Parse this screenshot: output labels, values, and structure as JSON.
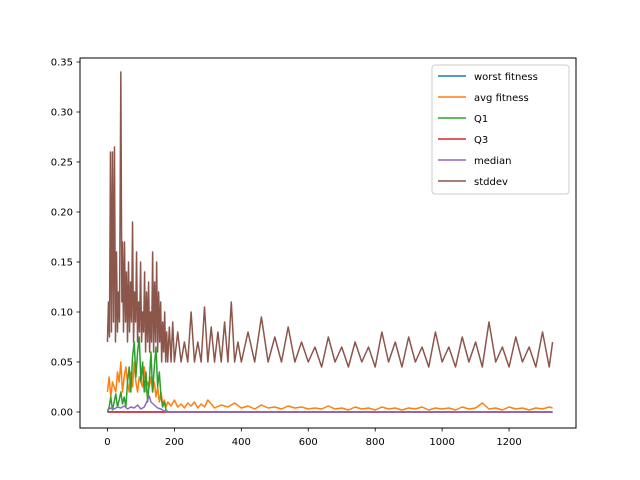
{
  "chart_data": {
    "type": "line",
    "title": "",
    "xlabel": "",
    "ylabel": "",
    "xlim": [
      -82,
      1400
    ],
    "ylim": [
      -0.016,
      0.354
    ],
    "x_ticks": [
      {
        "value": 0,
        "label": "0"
      },
      {
        "value": 200,
        "label": "200"
      },
      {
        "value": 400,
        "label": "400"
      },
      {
        "value": 600,
        "label": "600"
      },
      {
        "value": 800,
        "label": "800"
      },
      {
        "value": 1000,
        "label": "1000"
      },
      {
        "value": 1200,
        "label": "1200"
      }
    ],
    "y_ticks": [
      {
        "value": 0.0,
        "label": "0.00"
      },
      {
        "value": 0.05,
        "label": "0.05"
      },
      {
        "value": 0.1,
        "label": "0.10"
      },
      {
        "value": 0.15,
        "label": "0.15"
      },
      {
        "value": 0.2,
        "label": "0.20"
      },
      {
        "value": 0.25,
        "label": "0.25"
      },
      {
        "value": 0.3,
        "label": "0.30"
      },
      {
        "value": 0.35,
        "label": "0.35"
      }
    ],
    "grid": false,
    "legend": "top-right",
    "series": [
      {
        "name": "worst fitness",
        "color": "#1f77b4",
        "x": [
          0,
          1330
        ],
        "y": [
          0.0,
          0.0
        ]
      },
      {
        "name": "avg fitness",
        "color": "#ff7f0e",
        "x": [
          0,
          5,
          10,
          15,
          20,
          25,
          30,
          35,
          40,
          45,
          50,
          55,
          60,
          65,
          70,
          75,
          80,
          85,
          90,
          95,
          100,
          105,
          110,
          115,
          120,
          125,
          130,
          135,
          140,
          145,
          150,
          155,
          160,
          165,
          170,
          175,
          180,
          190,
          200,
          210,
          220,
          230,
          240,
          250,
          260,
          270,
          280,
          290,
          300,
          320,
          340,
          360,
          380,
          400,
          420,
          440,
          460,
          480,
          500,
          520,
          540,
          560,
          580,
          600,
          620,
          640,
          660,
          680,
          700,
          720,
          740,
          760,
          780,
          800,
          820,
          840,
          860,
          880,
          900,
          920,
          940,
          960,
          980,
          1000,
          1020,
          1040,
          1060,
          1080,
          1100,
          1120,
          1140,
          1160,
          1180,
          1200,
          1220,
          1240,
          1260,
          1280,
          1300,
          1320,
          1330
        ],
        "y": [
          0.02,
          0.035,
          0.015,
          0.03,
          0.025,
          0.02,
          0.04,
          0.03,
          0.05,
          0.02,
          0.035,
          0.045,
          0.03,
          0.02,
          0.04,
          0.025,
          0.05,
          0.03,
          0.02,
          0.035,
          0.03,
          0.025,
          0.045,
          0.02,
          0.03,
          0.025,
          0.035,
          0.02,
          0.03,
          0.015,
          0.025,
          0.01,
          0.02,
          0.008,
          0.012,
          0.005,
          0.01,
          0.006,
          0.012,
          0.005,
          0.008,
          0.004,
          0.009,
          0.006,
          0.01,
          0.004,
          0.008,
          0.005,
          0.012,
          0.004,
          0.007,
          0.005,
          0.009,
          0.004,
          0.006,
          0.003,
          0.007,
          0.004,
          0.005,
          0.003,
          0.006,
          0.004,
          0.005,
          0.003,
          0.004,
          0.003,
          0.006,
          0.003,
          0.004,
          0.002,
          0.005,
          0.003,
          0.004,
          0.002,
          0.005,
          0.003,
          0.004,
          0.002,
          0.004,
          0.003,
          0.005,
          0.002,
          0.004,
          0.003,
          0.004,
          0.002,
          0.005,
          0.003,
          0.004,
          0.009,
          0.003,
          0.004,
          0.002,
          0.005,
          0.003,
          0.004,
          0.002,
          0.004,
          0.003,
          0.005,
          0.004
        ]
      },
      {
        "name": "Q1",
        "color": "#2ca02c",
        "x": [
          0,
          5,
          10,
          15,
          20,
          25,
          30,
          35,
          40,
          45,
          50,
          55,
          60,
          65,
          70,
          75,
          80,
          85,
          90,
          95,
          100,
          105,
          110,
          115,
          120,
          125,
          130,
          135,
          140,
          145,
          150,
          155,
          160,
          165,
          170,
          175,
          180,
          200,
          1330
        ],
        "y": [
          0.0,
          0.005,
          0.015,
          0.002,
          0.01,
          0.018,
          0.005,
          0.012,
          0.02,
          0.008,
          0.015,
          0.005,
          0.03,
          0.045,
          0.02,
          0.055,
          0.07,
          0.035,
          0.06,
          0.075,
          0.03,
          0.05,
          0.02,
          0.04,
          0.01,
          0.03,
          0.06,
          0.02,
          0.045,
          0.065,
          0.025,
          0.04,
          0.015,
          0.005,
          0.01,
          0.002,
          0.0,
          0.0,
          0.0
        ]
      },
      {
        "name": "Q3",
        "color": "#d62728",
        "x": [
          0,
          1330
        ],
        "y": [
          0.0,
          0.0
        ]
      },
      {
        "name": "median",
        "color": "#9467bd",
        "x": [
          0,
          10,
          20,
          30,
          40,
          50,
          60,
          70,
          80,
          90,
          100,
          110,
          120,
          125,
          130,
          140,
          150,
          160,
          170,
          180,
          1330
        ],
        "y": [
          0.002,
          0.004,
          0.003,
          0.005,
          0.004,
          0.006,
          0.003,
          0.005,
          0.004,
          0.007,
          0.003,
          0.005,
          0.012,
          0.016,
          0.01,
          0.007,
          0.004,
          0.003,
          0.001,
          0.0,
          0.0
        ]
      },
      {
        "name": "stddev",
        "color": "#8c564b",
        "x": [
          0,
          3,
          6,
          9,
          12,
          15,
          18,
          21,
          24,
          27,
          30,
          33,
          36,
          40,
          43,
          45,
          48,
          51,
          54,
          57,
          60,
          63,
          66,
          69,
          72,
          75,
          78,
          81,
          84,
          87,
          90,
          93,
          96,
          99,
          102,
          105,
          108,
          111,
          114,
          117,
          120,
          123,
          126,
          129,
          132,
          135,
          138,
          141,
          144,
          147,
          150,
          153,
          156,
          159,
          162,
          165,
          168,
          171,
          174,
          177,
          180,
          185,
          190,
          195,
          200,
          210,
          220,
          230,
          240,
          250,
          260,
          270,
          280,
          290,
          300,
          310,
          320,
          330,
          340,
          350,
          360,
          370,
          380,
          390,
          400,
          420,
          440,
          460,
          480,
          500,
          520,
          540,
          560,
          580,
          600,
          620,
          640,
          660,
          680,
          700,
          720,
          740,
          760,
          780,
          800,
          820,
          840,
          860,
          880,
          900,
          920,
          940,
          960,
          980,
          1000,
          1020,
          1040,
          1060,
          1080,
          1100,
          1120,
          1140,
          1160,
          1180,
          1200,
          1220,
          1240,
          1260,
          1280,
          1300,
          1320,
          1330
        ],
        "y": [
          0.07,
          0.11,
          0.075,
          0.26,
          0.08,
          0.26,
          0.09,
          0.265,
          0.07,
          0.16,
          0.08,
          0.12,
          0.09,
          0.34,
          0.11,
          0.17,
          0.08,
          0.17,
          0.09,
          0.14,
          0.07,
          0.15,
          0.08,
          0.13,
          0.09,
          0.19,
          0.07,
          0.12,
          0.09,
          0.16,
          0.07,
          0.11,
          0.08,
          0.15,
          0.07,
          0.1,
          0.08,
          0.14,
          0.06,
          0.12,
          0.07,
          0.13,
          0.06,
          0.1,
          0.07,
          0.16,
          0.06,
          0.13,
          0.07,
          0.15,
          0.06,
          0.12,
          0.07,
          0.11,
          0.05,
          0.09,
          0.06,
          0.1,
          0.05,
          0.08,
          0.05,
          0.085,
          0.05,
          0.09,
          0.05,
          0.08,
          0.05,
          0.07,
          0.05,
          0.1,
          0.05,
          0.07,
          0.05,
          0.105,
          0.05,
          0.085,
          0.05,
          0.08,
          0.05,
          0.09,
          0.05,
          0.11,
          0.05,
          0.07,
          0.05,
          0.08,
          0.05,
          0.095,
          0.05,
          0.075,
          0.05,
          0.085,
          0.05,
          0.07,
          0.05,
          0.065,
          0.045,
          0.075,
          0.05,
          0.065,
          0.045,
          0.07,
          0.05,
          0.065,
          0.045,
          0.08,
          0.05,
          0.07,
          0.045,
          0.075,
          0.05,
          0.065,
          0.045,
          0.08,
          0.05,
          0.065,
          0.045,
          0.075,
          0.05,
          0.07,
          0.045,
          0.09,
          0.05,
          0.065,
          0.045,
          0.075,
          0.05,
          0.065,
          0.045,
          0.08,
          0.045,
          0.07
        ]
      }
    ]
  }
}
